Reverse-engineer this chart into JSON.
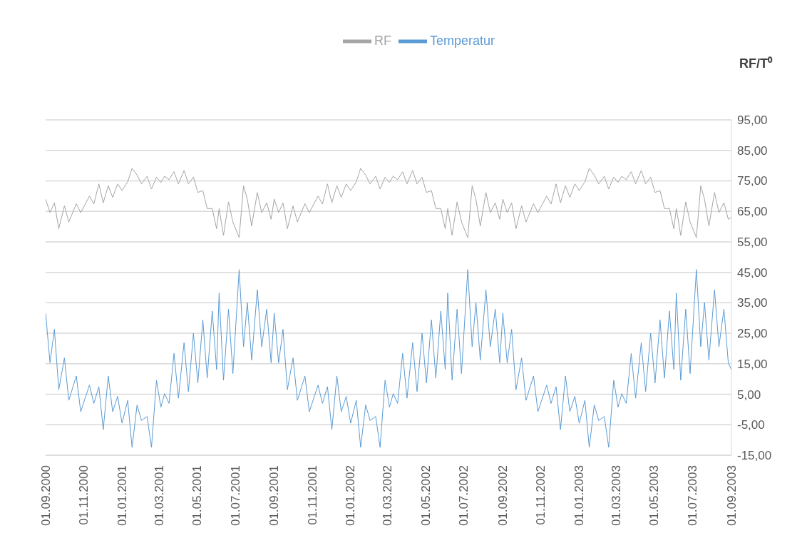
{
  "chart_data": {
    "type": "line",
    "ylabel": "RF/T⁰",
    "legend": "top",
    "grid": "y",
    "marker": "none",
    "line_style": "solid",
    "x": [
      "2000-09-01",
      "2000-09-08",
      "2000-09-15",
      "2000-09-22",
      "2000-10-01",
      "2000-10-08",
      "2000-10-20",
      "2000-10-27",
      "2000-11-10",
      "2000-11-17",
      "2000-11-25",
      "2000-12-02",
      "2000-12-10",
      "2000-12-17",
      "2000-12-25",
      "2001-01-01",
      "2001-01-10",
      "2001-01-17",
      "2001-01-25",
      "2001-02-01",
      "2001-02-10",
      "2001-02-17",
      "2001-02-25",
      "2001-03-04",
      "2001-03-10",
      "2001-03-17",
      "2001-03-25",
      "2001-04-01",
      "2001-04-10",
      "2001-04-17",
      "2001-04-25",
      "2001-05-02",
      "2001-05-10",
      "2001-05-17",
      "2001-05-25",
      "2001-06-01",
      "2001-06-05",
      "2001-06-12",
      "2001-06-20",
      "2001-06-27",
      "2001-07-07",
      "2001-07-14",
      "2001-07-20",
      "2001-07-27",
      "2001-08-05",
      "2001-08-12",
      "2001-08-20",
      "2001-08-27",
      "2001-09-01",
      "2001-09-08",
      "2001-09-15",
      "2001-09-22",
      "2001-10-01",
      "2001-10-08",
      "2001-10-20",
      "2001-10-27",
      "2001-11-10",
      "2001-11-17",
      "2001-11-25",
      "2001-12-02",
      "2001-12-10",
      "2001-12-17",
      "2001-12-25",
      "2002-01-01",
      "2002-01-10",
      "2002-01-17",
      "2002-01-25",
      "2002-02-01",
      "2002-02-10",
      "2002-02-17",
      "2002-02-25",
      "2002-03-04",
      "2002-03-10",
      "2002-03-17",
      "2002-03-25",
      "2002-04-01",
      "2002-04-10",
      "2002-04-17",
      "2002-04-25",
      "2002-05-02",
      "2002-05-10",
      "2002-05-17",
      "2002-05-25",
      "2002-06-01",
      "2002-06-05",
      "2002-06-12",
      "2002-06-20",
      "2002-06-27",
      "2002-07-07",
      "2002-07-14",
      "2002-07-20",
      "2002-07-27",
      "2002-08-05",
      "2002-08-12",
      "2002-08-20",
      "2002-08-27",
      "2002-09-01",
      "2002-09-08",
      "2002-09-15",
      "2002-09-22",
      "2002-10-01",
      "2002-10-08",
      "2002-10-20",
      "2002-10-27",
      "2002-11-10",
      "2002-11-17",
      "2002-11-25",
      "2002-12-02",
      "2002-12-10",
      "2002-12-17",
      "2002-12-25",
      "2003-01-01",
      "2003-01-10",
      "2003-01-17",
      "2003-01-25",
      "2003-02-01",
      "2003-02-10",
      "2003-02-17",
      "2003-02-25",
      "2003-03-04",
      "2003-03-10",
      "2003-03-17",
      "2003-03-25",
      "2003-04-01",
      "2003-04-10",
      "2003-04-17",
      "2003-04-25",
      "2003-05-02",
      "2003-05-10",
      "2003-05-17",
      "2003-05-25",
      "2003-06-01",
      "2003-06-05",
      "2003-06-12",
      "2003-06-20",
      "2003-06-27",
      "2003-07-07",
      "2003-07-14",
      "2003-07-20",
      "2003-07-27",
      "2003-08-05",
      "2003-08-12",
      "2003-08-20",
      "2003-08-27",
      "2003-09-01"
    ],
    "series": [
      {
        "name": "Temperatur",
        "color": "#5b9bd5",
        "values": [
          31.6,
          15.3,
          26.3,
          6.5,
          16.9,
          3,
          11,
          -0.7,
          8,
          2,
          7.5,
          -6.6,
          11,
          -0.7,
          4.3,
          -4.5,
          3,
          -12.4,
          1.5,
          -3.6,
          -2.3,
          -12.4,
          9.6,
          0.8,
          5.2,
          2,
          18.4,
          3.7,
          21.9,
          5.9,
          25,
          8.7,
          29.4,
          10.3,
          32.3,
          13.1,
          38.2,
          9.6,
          32.9,
          11.8,
          45.9,
          20.6,
          35.1,
          16.2,
          39.3,
          20.6,
          32.9,
          15.3,
          31.6,
          15.3,
          26.3,
          6.5,
          16.9,
          3,
          11,
          -0.7,
          8,
          2,
          7.5,
          -6.6,
          11,
          -0.7,
          4.3,
          -4.5,
          3,
          -12.4,
          1.5,
          -3.6,
          -2.3,
          -12.4,
          9.6,
          0.8,
          5.2,
          2,
          18.4,
          3.7,
          21.9,
          5.9,
          25,
          8.7,
          29.4,
          10.3,
          32.3,
          13.1,
          38.2,
          9.6,
          32.9,
          11.8,
          45.9,
          20.6,
          35.1,
          16.2,
          39.3,
          20.6,
          32.9,
          15.3,
          31.6,
          15.3,
          26.3,
          6.5,
          16.9,
          3,
          11,
          -0.7,
          8,
          2,
          7.5,
          -6.6,
          11,
          -0.7,
          4.3,
          -4.5,
          3,
          -12.4,
          1.5,
          -3.6,
          -2.3,
          -12.4,
          9.6,
          0.8,
          5.2,
          2,
          18.4,
          3.7,
          21.9,
          5.9,
          25,
          8.7,
          29.4,
          10.3,
          32.3,
          13.1,
          38.2,
          9.6,
          32.9,
          11.8,
          45.9,
          20.6,
          35.1,
          16.2,
          39.3,
          20.6,
          32.9,
          15.3,
          13
        ]
      },
      {
        "name": "RF",
        "color": "#a5a5a5",
        "values": [
          69,
          64.6,
          67.8,
          59.3,
          66.8,
          61.5,
          67.5,
          64.6,
          70,
          67.4,
          74,
          67.8,
          73.4,
          69.6,
          74,
          71.8,
          74.7,
          79.1,
          76.9,
          74,
          76.5,
          72.3,
          76.2,
          74.5,
          76.5,
          75.4,
          78,
          74,
          78.4,
          74,
          76.2,
          71.2,
          71.8,
          65.9,
          65.9,
          59.3,
          65.9,
          57.1,
          68.1,
          61.5,
          56.4,
          73.4,
          69,
          60.2,
          71.2,
          64.6,
          67.8,
          62.4,
          69,
          64.6,
          67.8,
          59.3,
          66.8,
          61.5,
          67.5,
          64.6,
          70,
          67.4,
          74,
          67.8,
          73.4,
          69.6,
          74,
          71.8,
          74.7,
          79.1,
          76.9,
          74,
          76.5,
          72.3,
          76.2,
          74.5,
          76.5,
          75.4,
          78,
          74,
          78.4,
          74,
          76.2,
          71.2,
          71.8,
          65.9,
          65.9,
          59.3,
          65.9,
          57.1,
          68.1,
          61.5,
          56.4,
          73.4,
          69,
          60.2,
          71.2,
          64.6,
          67.8,
          62.4,
          69,
          64.6,
          67.8,
          59.3,
          66.8,
          61.5,
          67.5,
          64.6,
          70,
          67.4,
          74,
          67.8,
          73.4,
          69.6,
          74,
          71.8,
          74.7,
          79.1,
          76.9,
          74,
          76.5,
          72.3,
          76.2,
          74.5,
          76.5,
          75.4,
          78,
          74,
          78.4,
          74,
          76.2,
          71.2,
          71.8,
          65.9,
          65.9,
          59.3,
          65.9,
          57.1,
          68.1,
          61.5,
          56.4,
          73.4,
          69,
          60.2,
          71.2,
          64.6,
          67.8,
          62.4,
          63
        ]
      }
    ],
    "xlim": [
      "2000-09-01",
      "2003-09-01"
    ],
    "xticks": [
      {
        "value": "2000-09-01",
        "label": "01.09.2000"
      },
      {
        "value": "2000-11-01",
        "label": "01.11.2000"
      },
      {
        "value": "2001-01-01",
        "label": "01.01.2001"
      },
      {
        "value": "2001-03-01",
        "label": "01.03.2001"
      },
      {
        "value": "2001-05-01",
        "label": "01.05.2001"
      },
      {
        "value": "2001-07-01",
        "label": "01.07.2001"
      },
      {
        "value": "2001-09-01",
        "label": "01.09.2001"
      },
      {
        "value": "2001-11-01",
        "label": "01.11.2001"
      },
      {
        "value": "2002-01-01",
        "label": "01.01.2002"
      },
      {
        "value": "2002-03-01",
        "label": "01.03.2002"
      },
      {
        "value": "2002-05-01",
        "label": "01.05.2002"
      },
      {
        "value": "2002-07-01",
        "label": "01.07.2002"
      },
      {
        "value": "2002-09-01",
        "label": "01.09.2002"
      },
      {
        "value": "2002-11-01",
        "label": "01.11.2002"
      },
      {
        "value": "2003-01-01",
        "label": "01.01.2003"
      },
      {
        "value": "2003-03-01",
        "label": "01.03.2003"
      },
      {
        "value": "2003-05-01",
        "label": "01.05.2003"
      },
      {
        "value": "2003-07-01",
        "label": "01.07.2003"
      },
      {
        "value": "2003-09-01",
        "label": "01.09.2003"
      }
    ],
    "ylim": [
      -15,
      95
    ],
    "yticks": [
      {
        "value": -15,
        "label": "-15,00"
      },
      {
        "value": -5,
        "label": "-5,00"
      },
      {
        "value": 5,
        "label": "5,00"
      },
      {
        "value": 15,
        "label": "15,00"
      },
      {
        "value": 25,
        "label": "25,00"
      },
      {
        "value": 35,
        "label": "35,00"
      },
      {
        "value": 45,
        "label": "45,00"
      },
      {
        "value": 55,
        "label": "55,00"
      },
      {
        "value": 65,
        "label": "65,00"
      },
      {
        "value": 75,
        "label": "75,00"
      },
      {
        "value": 85,
        "label": "85,00"
      },
      {
        "value": 95,
        "label": "95,00"
      }
    ]
  }
}
